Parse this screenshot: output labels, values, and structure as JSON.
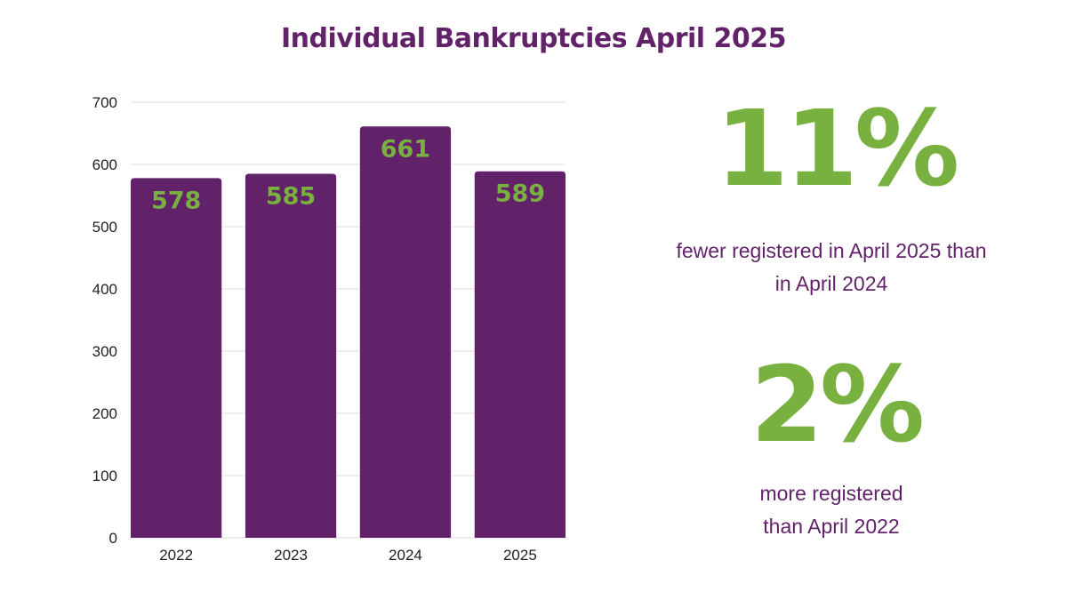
{
  "title": "Individual Bankruptcies April 2025",
  "colors": {
    "bar": "#62226a",
    "bar_label": "#78b13f",
    "title": "#62226a",
    "stat_value": "#78b13f",
    "stat_caption": "#62226a",
    "grid": "#dddddd",
    "tick": "#222222"
  },
  "stats": [
    {
      "value": "11%",
      "caption_line1": "fewer registered in April 2025 than",
      "caption_line2": "in April 2024"
    },
    {
      "value": "2%",
      "caption_line1": "more registered",
      "caption_line2": "than April 2022"
    }
  ],
  "chart_data": {
    "type": "bar",
    "categories": [
      "2022",
      "2023",
      "2024",
      "2025"
    ],
    "values": [
      578,
      585,
      661,
      589
    ],
    "data_labels": [
      "578",
      "585",
      "661",
      "589"
    ],
    "ylim": [
      0,
      700
    ],
    "yticks": [
      0,
      100,
      200,
      300,
      400,
      500,
      600,
      700
    ],
    "grid": true
  }
}
